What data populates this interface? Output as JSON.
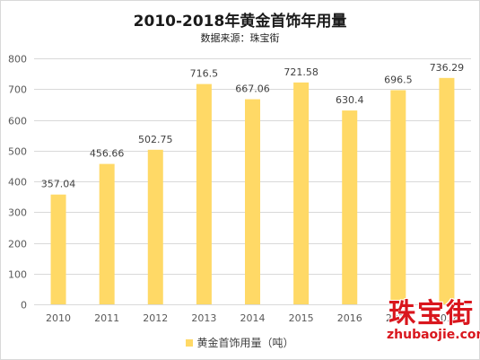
{
  "chart_data": {
    "type": "bar",
    "title": "2010-2018年黄金首饰年用量",
    "subtitle": "数据来源：珠宝街",
    "categories": [
      "2010",
      "2011",
      "2012",
      "2013",
      "2014",
      "2015",
      "2016",
      "2017",
      "2018"
    ],
    "series": [
      {
        "name": "黄金首饰用量（吨）",
        "values": [
          357.04,
          456.66,
          502.75,
          716.5,
          667.06,
          721.58,
          630.4,
          696.5,
          736.29
        ],
        "labels": [
          "357.04",
          "456.66",
          "502.75",
          "716.5",
          "667.06",
          "721.58",
          "630.4",
          "696.5",
          "736.29"
        ]
      }
    ],
    "ylim": [
      0,
      800
    ],
    "yticks": [
      0,
      100,
      200,
      300,
      400,
      500,
      600,
      700,
      800
    ],
    "grid": true,
    "legend_position": "bottom",
    "bar_color": "#ffd966",
    "grid_color": "#d9d9d9",
    "axis_text_color": "#595959"
  },
  "watermark": {
    "main": "珠宝街",
    "sub": "zhubaojie.com"
  }
}
